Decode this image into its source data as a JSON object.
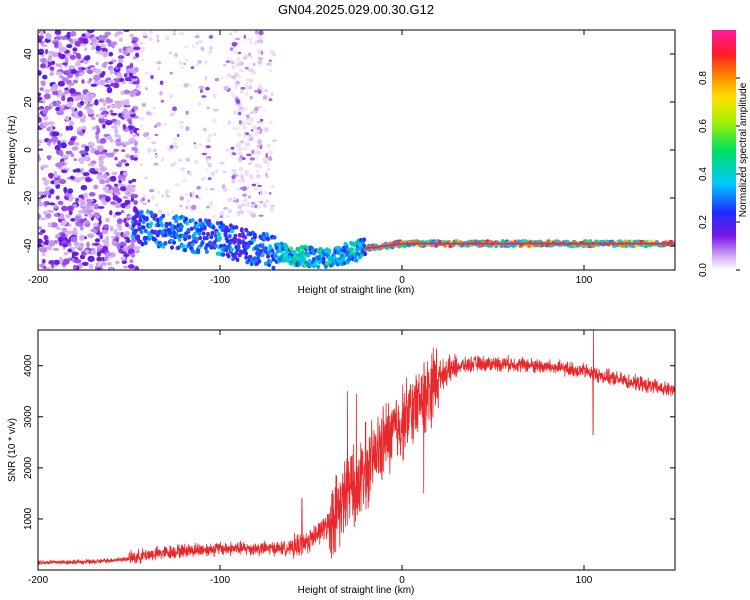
{
  "title": "GN04.2025.029.00.30.G12",
  "colorbar": {
    "label": "Normalized spectral amplitude",
    "ticks": [
      "0.0",
      "0.2",
      "0.4",
      "0.6",
      "0.8"
    ],
    "tick_values": [
      0.0,
      0.2,
      0.4,
      0.6,
      0.8
    ],
    "range": [
      0,
      1
    ]
  },
  "chart_data": [
    {
      "type": "heatmap",
      "xlabel": "Height of straight line (km)",
      "ylabel": "Frequency (Hz)",
      "xlim": [
        -200,
        150
      ],
      "ylim": [
        -50,
        50
      ],
      "x_ticks": [
        "-200",
        "-100",
        "0",
        "100"
      ],
      "x_tick_values": [
        -200,
        -100,
        0,
        100
      ],
      "y_ticks": [
        "40",
        "20",
        "0",
        "-20",
        "-40"
      ],
      "y_tick_values": [
        40,
        20,
        0,
        -20,
        -40
      ],
      "colorscale": "rainbow",
      "features": {
        "noise_region_x": [
          -200,
          -145
        ],
        "scattered_region_x": [
          -145,
          -70
        ],
        "dominant_line": [
          {
            "x": -145,
            "y": -32
          },
          {
            "x": -120,
            "y": -35
          },
          {
            "x": -100,
            "y": -37
          },
          {
            "x": -80,
            "y": -41
          },
          {
            "x": -60,
            "y": -44
          },
          {
            "x": -40,
            "y": -45
          },
          {
            "x": -20,
            "y": -41
          },
          {
            "x": 0,
            "y": -39
          },
          {
            "x": 50,
            "y": -39
          },
          {
            "x": 100,
            "y": -39
          },
          {
            "x": 150,
            "y": -39
          }
        ]
      }
    },
    {
      "type": "line",
      "xlabel": "Height of straight line (km)",
      "ylabel": "SNR (10 * v/v)",
      "xlim": [
        -200,
        150
      ],
      "ylim": [
        0,
        4700
      ],
      "x_ticks": [
        "-200",
        "-100",
        "0",
        "100"
      ],
      "x_tick_values": [
        -200,
        -100,
        0,
        100
      ],
      "y_ticks": [
        "1000",
        "2000",
        "3000",
        "4000"
      ],
      "y_tick_values": [
        1000,
        2000,
        3000,
        4000
      ],
      "grid": false,
      "series": [
        {
          "color": "#e8282a",
          "points": [
            {
              "x": -200,
              "y": 150
            },
            {
              "x": -170,
              "y": 160
            },
            {
              "x": -150,
              "y": 220
            },
            {
              "x": -140,
              "y": 300
            },
            {
              "x": -120,
              "y": 380
            },
            {
              "x": -100,
              "y": 420
            },
            {
              "x": -80,
              "y": 420
            },
            {
              "x": -60,
              "y": 430
            },
            {
              "x": -50,
              "y": 600
            },
            {
              "x": -40,
              "y": 900
            },
            {
              "x": -30,
              "y": 1500
            },
            {
              "x": -20,
              "y": 1900
            },
            {
              "x": -10,
              "y": 2500
            },
            {
              "x": 0,
              "y": 2900
            },
            {
              "x": 10,
              "y": 3300
            },
            {
              "x": 20,
              "y": 3800
            },
            {
              "x": 30,
              "y": 3980
            },
            {
              "x": 40,
              "y": 4040
            },
            {
              "x": 60,
              "y": 4040
            },
            {
              "x": 80,
              "y": 3980
            },
            {
              "x": 100,
              "y": 3900
            },
            {
              "x": 110,
              "y": 3800
            },
            {
              "x": 130,
              "y": 3650
            },
            {
              "x": 150,
              "y": 3500
            }
          ],
          "spikes": [
            {
              "x": -55,
              "y": 1400
            },
            {
              "x": -30,
              "y": 3500
            },
            {
              "x": -25,
              "y": 3450
            },
            {
              "x": -20,
              "y": 2900
            },
            {
              "x": 7,
              "y": 3600
            },
            {
              "x": 12,
              "y": 1500
            },
            {
              "x": 105,
              "y": 4700
            },
            {
              "x": 105,
              "y": 2650
            }
          ]
        }
      ]
    }
  ]
}
